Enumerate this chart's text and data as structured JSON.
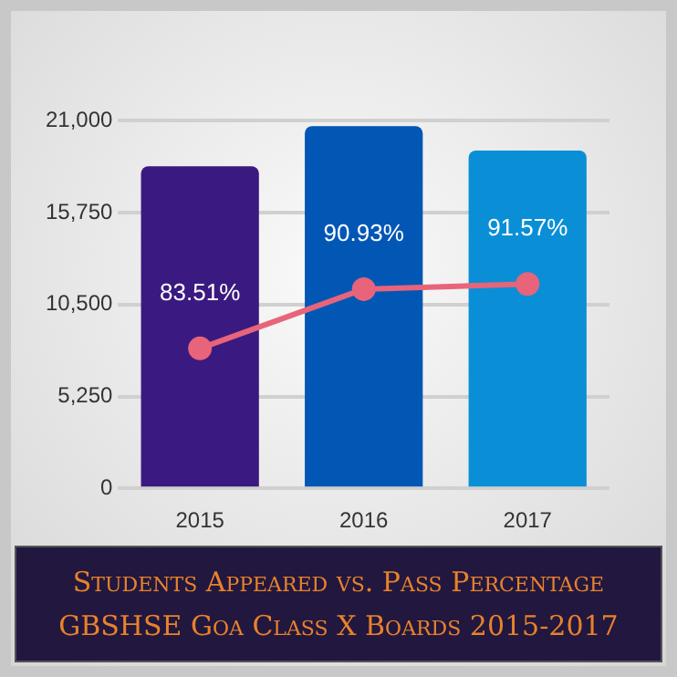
{
  "chart_data": {
    "type": "bar",
    "title": "Students Appeared vs. Pass Percentage\nGBSHSE Goa Class X Boards 2015-2017",
    "categories": [
      "2015",
      "2016",
      "2017"
    ],
    "series": [
      {
        "colors": [
          "#3a1a80",
          "#0257b5",
          "#0a8fd6"
        ],
        "values": [
          18400,
          20700,
          19300
        ]
      },
      {
        "type": "line",
        "axis": "y2",
        "color": "#e8647a",
        "marker": "circle",
        "values": [
          83.51,
          90.93,
          91.57
        ],
        "value_labels": [
          "83.51%",
          "90.93%",
          "91.57%"
        ]
      }
    ],
    "ylim": [
      0,
      21000
    ],
    "yticks": [
      {
        "value": 0,
        "label": "0"
      },
      {
        "value": 5250,
        "label": "5,250"
      },
      {
        "value": 10500,
        "label": "10,500"
      },
      {
        "value": 15750,
        "label": "15,750"
      },
      {
        "value": 21000,
        "label": "21,000"
      }
    ],
    "y2lim": [
      66,
      112
    ],
    "tick_labels": "xy",
    "grid": "y",
    "legend": false
  }
}
